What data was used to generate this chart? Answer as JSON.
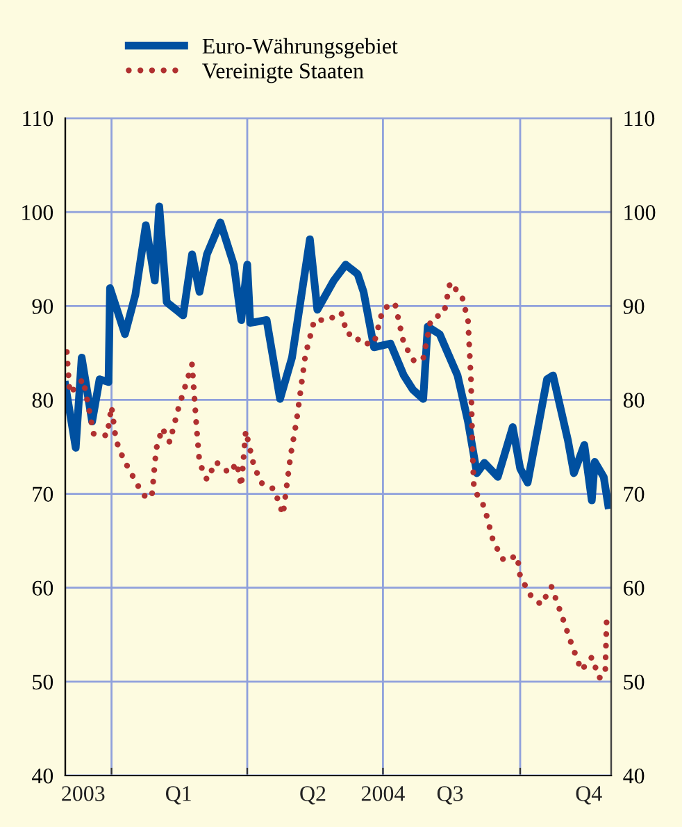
{
  "chart_data": {
    "type": "line",
    "xlim": [
      "2003-12-01",
      "2004-12-01"
    ],
    "xticks": [
      {
        "value": "2004-01-01",
        "label": null
      },
      {
        "value": "2004-04-01",
        "label": null
      },
      {
        "value": "2004-07-01",
        "label": null
      },
      {
        "value": "2004-10-01",
        "label": null
      },
      {
        "value": "2003-12-13",
        "label": "2003"
      },
      {
        "value": "2004-02-15",
        "label": "Q1"
      },
      {
        "value": "2004-05-15",
        "label": "Q2"
      },
      {
        "value": "2004-07-01",
        "label": "2004"
      },
      {
        "value": "2004-08-15",
        "label": "Q3"
      },
      {
        "value": "2004-11-16",
        "label": "Q4"
      }
    ],
    "ylim": [
      40,
      110
    ],
    "yticks": [
      40,
      50,
      60,
      70,
      80,
      90,
      100,
      110
    ],
    "y2lim": [
      40,
      110
    ],
    "y2ticks": [
      40,
      50,
      60,
      70,
      80,
      90,
      100,
      110
    ],
    "grid": true,
    "legend": "top left",
    "series": [
      {
        "name": "Euro-Währungsgebiet",
        "color": "#0050a0",
        "line_style": "solid",
        "x": [
          "2003-12-01",
          "2003-12-08",
          "2003-12-12",
          "2003-12-19",
          "2003-12-24",
          "2003-12-30",
          "2003-12-31",
          "2004-01-10",
          "2004-01-17",
          "2004-01-24",
          "2004-01-30",
          "2004-02-02",
          "2004-02-07",
          "2004-02-18",
          "2004-02-24",
          "2004-02-29",
          "2004-03-05",
          "2004-03-14",
          "2004-03-23",
          "2004-03-28",
          "2004-04-01",
          "2004-04-03",
          "2004-04-14",
          "2004-04-23",
          "2004-05-01",
          "2004-05-13",
          "2004-05-18",
          "2004-05-29",
          "2004-06-06",
          "2004-06-14",
          "2004-06-18",
          "2004-06-25",
          "2004-07-06",
          "2004-07-15",
          "2004-07-21",
          "2004-07-28",
          "2004-07-31",
          "2004-08-08",
          "2004-08-20",
          "2004-08-27",
          "2004-09-02",
          "2004-09-07",
          "2004-09-16",
          "2004-09-26",
          "2004-10-01",
          "2004-10-06",
          "2004-10-19",
          "2004-10-23",
          "2004-11-02",
          "2004-11-06",
          "2004-11-13",
          "2004-11-18",
          "2004-11-20",
          "2004-11-26",
          "2004-11-29"
        ],
        "values": [
          81.6,
          74.9,
          84.5,
          77.7,
          82.2,
          81.9,
          91.9,
          87,
          91.2,
          98.6,
          92.7,
          100.6,
          90.4,
          89,
          95.5,
          91.5,
          95.5,
          98.9,
          94.4,
          88.5,
          94.4,
          88.2,
          88.5,
          80.1,
          84.5,
          97.1,
          89.6,
          92.7,
          94.4,
          93.4,
          91.5,
          85.6,
          86,
          82.6,
          81.1,
          80.1,
          87.8,
          87,
          82.6,
          77.7,
          72.2,
          73.3,
          71.8,
          77.1,
          72.7,
          71.2,
          82.2,
          82.6,
          75.7,
          72.2,
          75.2,
          69.3,
          73.4,
          71.8,
          68.8
        ]
      },
      {
        "name": "Vereinigte Staaten",
        "color": "#b03030",
        "line_style": "dotted",
        "x": [
          "2003-12-02",
          "2003-12-04",
          "2003-12-13",
          "2003-12-17",
          "2003-12-20",
          "2003-12-29",
          "2004-01-01",
          "2004-01-04",
          "2004-01-09",
          "2004-01-19",
          "2004-01-24",
          "2004-01-28",
          "2004-01-31",
          "2004-02-04",
          "2004-02-09",
          "2004-02-15",
          "2004-02-24",
          "2004-02-27",
          "2004-02-29",
          "2004-03-05",
          "2004-03-11",
          "2004-03-20",
          "2004-03-25",
          "2004-03-28",
          "2004-03-31",
          "2004-04-05",
          "2004-04-10",
          "2004-04-19",
          "2004-04-25",
          "2004-04-30",
          "2004-05-04",
          "2004-05-10",
          "2004-05-16",
          "2004-05-25",
          "2004-06-03",
          "2004-06-07",
          "2004-06-12",
          "2004-06-16",
          "2004-06-25",
          "2004-07-01",
          "2004-07-09",
          "2004-07-15",
          "2004-07-22",
          "2004-07-28",
          "2004-08-02",
          "2004-08-11",
          "2004-08-15",
          "2004-08-23",
          "2004-08-27",
          "2004-08-29",
          "2004-08-30",
          "2004-08-31",
          "2004-09-07",
          "2004-09-13",
          "2004-09-20",
          "2004-09-29",
          "2004-10-01",
          "2004-10-08",
          "2004-10-15",
          "2004-10-22",
          "2004-10-29",
          "2004-11-04",
          "2004-11-11",
          "2004-11-18",
          "2004-11-23",
          "2004-11-27",
          "2004-11-28"
        ],
        "values": [
          85.1,
          80.7,
          82.2,
          78.9,
          76.4,
          76.2,
          79.3,
          75.7,
          73.7,
          70.8,
          69.6,
          69.7,
          74.8,
          77,
          75.5,
          79.2,
          83.8,
          77.1,
          73.3,
          71.5,
          73.4,
          72.2,
          73.3,
          70.8,
          76.7,
          73.3,
          71.2,
          70.5,
          67.8,
          74,
          77.7,
          84.8,
          88.5,
          88.5,
          89.3,
          87,
          87,
          86,
          86,
          89.7,
          90.3,
          86,
          84.1,
          84.4,
          88.5,
          89.3,
          92.5,
          91,
          88.5,
          82.2,
          74.8,
          70.5,
          68.6,
          64.9,
          62.9,
          63.4,
          61.2,
          59.2,
          58.2,
          60.1,
          57,
          54.2,
          51.2,
          52.6,
          50.4,
          50.8,
          56.7
        ]
      }
    ]
  }
}
